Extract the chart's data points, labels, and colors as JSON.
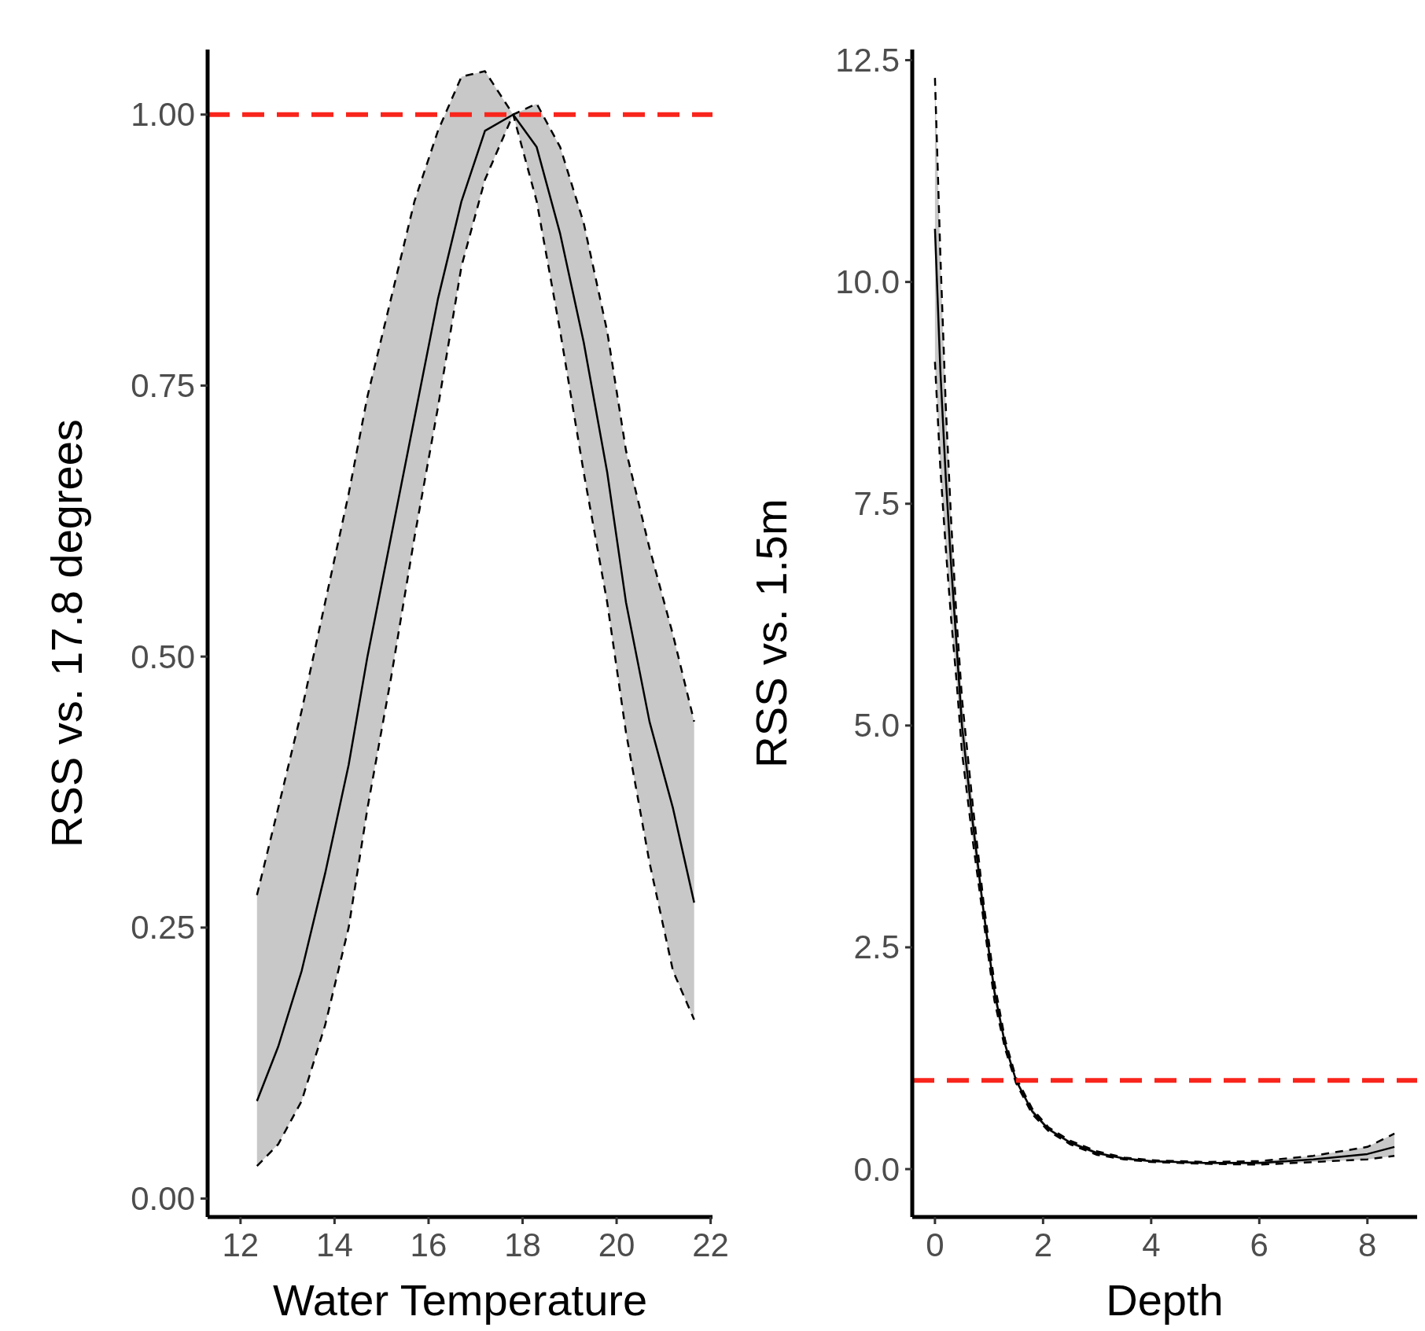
{
  "chart_data": [
    {
      "type": "line",
      "xlabel": "Water Temperature",
      "ylabel": "RSS vs. 17.8 degrees",
      "xlim": [
        11.3,
        22.04
      ],
      "ylim": [
        -0.017,
        1.06
      ],
      "xticks": [
        12,
        14,
        16,
        18,
        20,
        22
      ],
      "yticks": [
        {
          "value": 0,
          "label": "0.00"
        },
        {
          "value": 0.25,
          "label": "0.25"
        },
        {
          "value": 0.5,
          "label": "0.50"
        },
        {
          "value": 0.75,
          "label": "0.75"
        },
        {
          "value": 1,
          "label": "1.00"
        }
      ],
      "x": [
        12.35,
        12.8,
        13.3,
        13.8,
        14.3,
        14.7,
        15.2,
        15.7,
        16.2,
        16.7,
        17.2,
        17.8,
        18.3,
        18.8,
        19.3,
        19.8,
        20.2,
        20.7,
        21.2,
        21.65
      ],
      "series": [
        {
          "color": "#000000",
          "values": [
            0.09,
            0.14,
            0.21,
            0.3,
            0.4,
            0.5,
            0.61,
            0.72,
            0.83,
            0.92,
            0.985,
            1.0,
            0.97,
            0.89,
            0.79,
            0.67,
            0.55,
            0.44,
            0.36,
            0.273
          ],
          "upper": [
            0.28,
            0.36,
            0.45,
            0.55,
            0.65,
            0.74,
            0.83,
            0.92,
            0.985,
            1.035,
            1.04,
            1.0,
            1.01,
            0.97,
            0.9,
            0.8,
            0.69,
            0.6,
            0.52,
            0.44
          ],
          "lower": [
            0.03,
            0.05,
            0.09,
            0.16,
            0.25,
            0.36,
            0.48,
            0.61,
            0.73,
            0.86,
            0.94,
            1.0,
            0.92,
            0.8,
            0.67,
            0.55,
            0.43,
            0.31,
            0.21,
            0.165
          ]
        },
        {
          "color": "#000000",
          "line_style": "dashed",
          "values": [
            0.28,
            0.36,
            0.45,
            0.55,
            0.65,
            0.74,
            0.83,
            0.92,
            0.985,
            1.035,
            1.04,
            1.0,
            1.01,
            0.97,
            0.9,
            0.8,
            0.69,
            0.6,
            0.52,
            0.44
          ]
        },
        {
          "color": "#000000",
          "line_style": "dashed",
          "values": [
            0.03,
            0.05,
            0.09,
            0.16,
            0.25,
            0.36,
            0.48,
            0.61,
            0.73,
            0.86,
            0.94,
            1.0,
            0.92,
            0.8,
            0.67,
            0.55,
            0.43,
            0.31,
            0.21,
            0.165
          ]
        }
      ],
      "ref_lines": [
        {
          "axis": "y",
          "value": 1,
          "color": "#f8251c",
          "line_style": "dashed"
        }
      ]
    },
    {
      "type": "line",
      "xlabel": "Depth",
      "ylabel": "RSS vs. 1.5m",
      "xlim": [
        -0.42,
        8.92
      ],
      "ylim": [
        -0.54,
        12.62
      ],
      "xticks": [
        0,
        2,
        4,
        6,
        8
      ],
      "yticks": [
        {
          "value": 0,
          "label": "0.0"
        },
        {
          "value": 2.5,
          "label": "2.5"
        },
        {
          "value": 5,
          "label": "5.0"
        },
        {
          "value": 7.5,
          "label": "7.5"
        },
        {
          "value": 10,
          "label": "10.0"
        },
        {
          "value": 12.5,
          "label": "12.5"
        }
      ],
      "x": [
        0,
        0.1,
        0.2,
        0.3,
        0.4,
        0.5,
        0.7,
        0.9,
        1.1,
        1.3,
        1.5,
        1.8,
        2.1,
        2.5,
        3,
        3.5,
        4,
        5,
        6,
        7,
        8,
        8.5
      ],
      "series": [
        {
          "color": "#000000",
          "values": [
            10.6,
            9.0,
            7.8,
            6.8,
            5.9,
            5.0,
            3.9,
            2.9,
            2.0,
            1.4,
            1.0,
            0.65,
            0.45,
            0.3,
            0.18,
            0.12,
            0.09,
            0.07,
            0.07,
            0.11,
            0.17,
            0.25
          ],
          "upper": [
            12.3,
            10.3,
            8.6,
            7.3,
            6.2,
            5.3,
            4.1,
            3.0,
            2.1,
            1.45,
            1.03,
            0.68,
            0.47,
            0.32,
            0.2,
            0.13,
            0.1,
            0.08,
            0.09,
            0.15,
            0.25,
            0.4
          ],
          "lower": [
            9.1,
            7.9,
            7.0,
            6.2,
            5.5,
            4.7,
            3.7,
            2.8,
            1.9,
            1.35,
            0.97,
            0.62,
            0.43,
            0.28,
            0.16,
            0.11,
            0.08,
            0.06,
            0.05,
            0.08,
            0.11,
            0.15
          ]
        },
        {
          "color": "#000000",
          "line_style": "dashed",
          "values": [
            12.3,
            10.3,
            8.6,
            7.3,
            6.2,
            5.3,
            4.1,
            3.0,
            2.1,
            1.45,
            1.03,
            0.68,
            0.47,
            0.32,
            0.2,
            0.13,
            0.1,
            0.08,
            0.09,
            0.15,
            0.25,
            0.4
          ]
        },
        {
          "color": "#000000",
          "line_style": "dashed",
          "values": [
            9.1,
            7.9,
            7.0,
            6.2,
            5.5,
            4.7,
            3.7,
            2.8,
            1.9,
            1.35,
            0.97,
            0.62,
            0.43,
            0.28,
            0.16,
            0.11,
            0.08,
            0.06,
            0.05,
            0.08,
            0.11,
            0.15
          ]
        }
      ],
      "ref_lines": [
        {
          "axis": "y",
          "value": 1,
          "color": "#f8251c",
          "line_style": "dashed"
        }
      ]
    }
  ]
}
